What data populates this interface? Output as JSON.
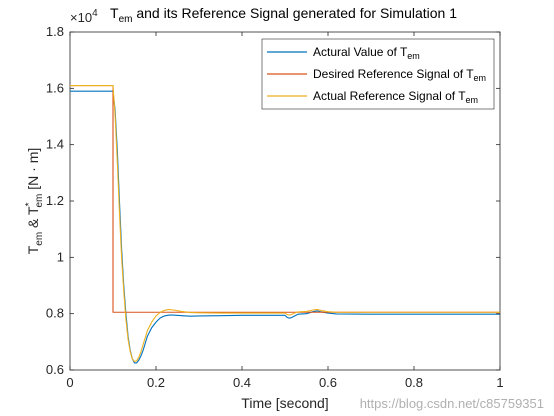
{
  "chart_data": {
    "type": "line",
    "title": "Tem and its Reference Signal generated for Simulation 1",
    "title_main": "T",
    "title_sub": "em",
    "title_rest": " and its Reference Signal generated for Simulation 1",
    "exponent": "×10",
    "exponent_power": "4",
    "xlabel": "Time [second]",
    "ylabel_parts": {
      "t1": "T",
      "s1": "em",
      "mid": " & T",
      "sup": "*",
      "s2": "em",
      "unit": " [N · m]"
    },
    "xlim": [
      0,
      1
    ],
    "ylim": [
      0.6,
      1.8
    ],
    "xticks": [
      "0",
      "0.2",
      "0.4",
      "0.6",
      "0.8",
      "1"
    ],
    "yticks": [
      "0.6",
      "0.8",
      "1",
      "1.2",
      "1.4",
      "1.6",
      "1.8"
    ],
    "legend_position": "top-right",
    "grid": false,
    "series": [
      {
        "name": "Actural Value of Tem",
        "name_main": "Actural Value of T",
        "name_sub": "em",
        "color": "#0072BD",
        "x": [
          0,
          0.1,
          0.105,
          0.11,
          0.115,
          0.12,
          0.125,
          0.13,
          0.135,
          0.14,
          0.145,
          0.15,
          0.155,
          0.16,
          0.165,
          0.17,
          0.175,
          0.18,
          0.19,
          0.2,
          0.21,
          0.22,
          0.23,
          0.24,
          0.26,
          0.28,
          0.3,
          0.35,
          0.4,
          0.5,
          0.505,
          0.51,
          0.515,
          0.52,
          0.525,
          0.53,
          0.55,
          0.565,
          0.575,
          0.585,
          0.6,
          0.62,
          0.7,
          0.8,
          0.9,
          1.0
        ],
        "y": [
          1.59,
          1.59,
          1.52,
          1.38,
          1.2,
          1.03,
          0.9,
          0.8,
          0.72,
          0.67,
          0.64,
          0.625,
          0.625,
          0.635,
          0.65,
          0.67,
          0.695,
          0.72,
          0.75,
          0.77,
          0.785,
          0.792,
          0.795,
          0.795,
          0.793,
          0.791,
          0.792,
          0.793,
          0.794,
          0.794,
          0.787,
          0.784,
          0.786,
          0.79,
          0.794,
          0.798,
          0.8,
          0.807,
          0.81,
          0.806,
          0.802,
          0.799,
          0.798,
          0.798,
          0.798,
          0.798
        ]
      },
      {
        "name": "Desired Reference Signal of Tem",
        "name_main": "Desired Reference Signal of T",
        "name_sub": "em",
        "color": "#D95319",
        "x": [
          0,
          0.1,
          0.1,
          1.0
        ],
        "y": [
          1.61,
          1.61,
          0.805,
          0.805
        ]
      },
      {
        "name": "Actual Reference Signal of Tem",
        "name_main": "Actual Reference Signal of T",
        "name_sub": "em",
        "color": "#EDB120",
        "x": [
          0,
          0.1,
          0.105,
          0.11,
          0.115,
          0.12,
          0.125,
          0.13,
          0.135,
          0.14,
          0.145,
          0.15,
          0.155,
          0.16,
          0.165,
          0.17,
          0.175,
          0.18,
          0.19,
          0.2,
          0.21,
          0.22,
          0.23,
          0.24,
          0.26,
          0.28,
          0.3,
          0.35,
          0.4,
          0.5,
          0.505,
          0.51,
          0.515,
          0.52,
          0.525,
          0.53,
          0.55,
          0.565,
          0.575,
          0.585,
          0.6,
          0.62,
          0.7,
          0.8,
          0.9,
          1.0
        ],
        "y": [
          1.61,
          1.61,
          1.5,
          1.34,
          1.16,
          1.0,
          0.88,
          0.78,
          0.71,
          0.665,
          0.64,
          0.63,
          0.633,
          0.645,
          0.665,
          0.69,
          0.715,
          0.74,
          0.77,
          0.792,
          0.805,
          0.812,
          0.815,
          0.813,
          0.808,
          0.804,
          0.803,
          0.802,
          0.802,
          0.802,
          0.797,
          0.795,
          0.797,
          0.8,
          0.804,
          0.806,
          0.808,
          0.813,
          0.815,
          0.811,
          0.807,
          0.805,
          0.805,
          0.805,
          0.805,
          0.805
        ]
      }
    ]
  },
  "watermark": "https://blog.csdn.net/c85759351"
}
